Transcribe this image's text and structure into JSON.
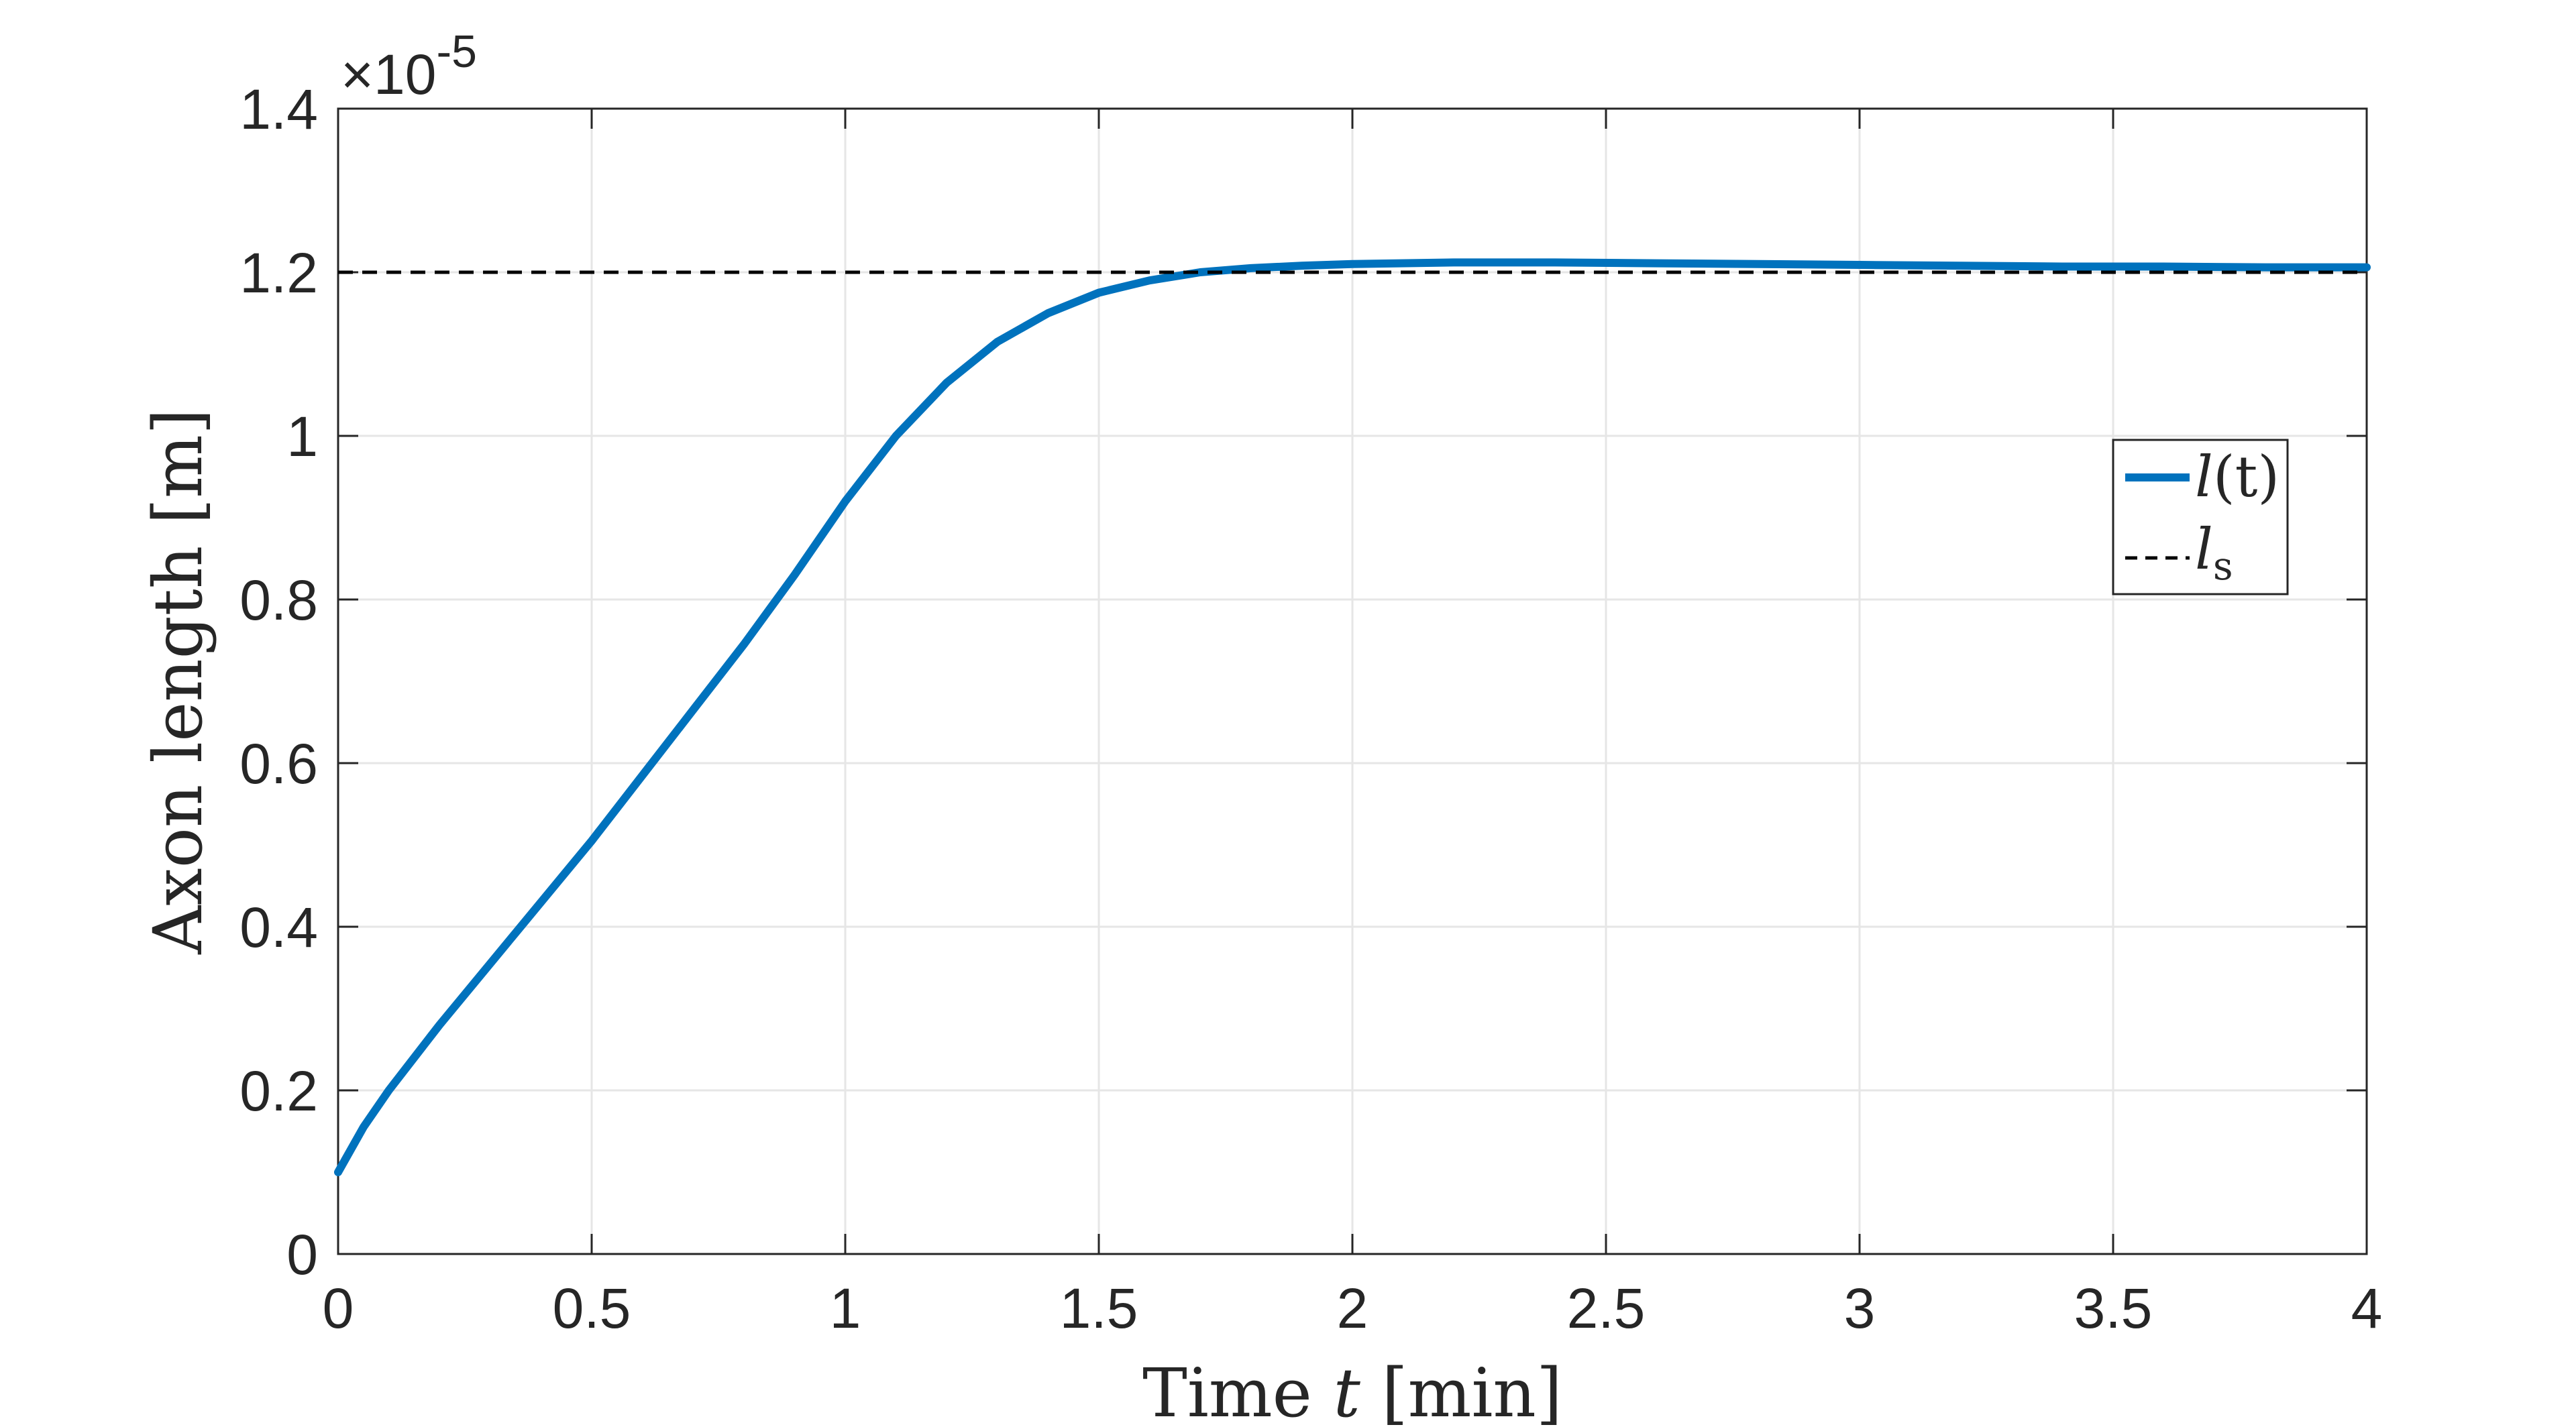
{
  "chart_data": {
    "type": "line",
    "xlabel": {
      "prefix": "Time ",
      "var": "t",
      "suffix": " [min]"
    },
    "ylabel": {
      "prefix": "Axon length ",
      "unit": "[m]"
    },
    "exponent_label": {
      "base": "×10",
      "power": "-5"
    },
    "xlim": [
      0,
      4
    ],
    "ylim": [
      0,
      1.4
    ],
    "y_multiplier": 1e-05,
    "xticks": [
      "0",
      "0.5",
      "1",
      "1.5",
      "2",
      "2.5",
      "3",
      "3.5",
      "4"
    ],
    "yticks": [
      "0",
      "0.2",
      "0.4",
      "0.6",
      "0.8",
      "1",
      "1.2",
      "1.4"
    ],
    "xtick_values": [
      0,
      0.5,
      1,
      1.5,
      2,
      2.5,
      3,
      3.5,
      4
    ],
    "ytick_values": [
      0,
      0.2,
      0.4,
      0.6,
      0.8,
      1.0,
      1.2,
      1.4
    ],
    "grid": true,
    "legend_placement": "right, middle",
    "series": [
      {
        "name": "l(t)",
        "legend_main": "l",
        "legend_arg": "(t)",
        "color": "#0072BD",
        "style": "solid",
        "x": [
          0,
          0.05,
          0.1,
          0.2,
          0.3,
          0.4,
          0.5,
          0.6,
          0.7,
          0.8,
          0.9,
          1.0,
          1.1,
          1.2,
          1.3,
          1.4,
          1.5,
          1.6,
          1.7,
          1.8,
          1.9,
          2.0,
          2.2,
          2.4,
          2.6,
          2.8,
          3.0,
          3.2,
          3.4,
          3.6,
          3.8,
          4.0
        ],
        "y": [
          0.1,
          0.155,
          0.2,
          0.28,
          0.355,
          0.43,
          0.505,
          0.585,
          0.665,
          0.745,
          0.83,
          0.92,
          1.0,
          1.065,
          1.115,
          1.15,
          1.175,
          1.19,
          1.2,
          1.205,
          1.208,
          1.21,
          1.212,
          1.212,
          1.211,
          1.21,
          1.209,
          1.208,
          1.207,
          1.207,
          1.206,
          1.206
        ]
      },
      {
        "name": "l_s",
        "legend_main": "l",
        "legend_sub": "s",
        "color": "#000000",
        "style": "dashed",
        "x": [
          0,
          4
        ],
        "y": [
          1.2,
          1.2
        ]
      }
    ]
  }
}
